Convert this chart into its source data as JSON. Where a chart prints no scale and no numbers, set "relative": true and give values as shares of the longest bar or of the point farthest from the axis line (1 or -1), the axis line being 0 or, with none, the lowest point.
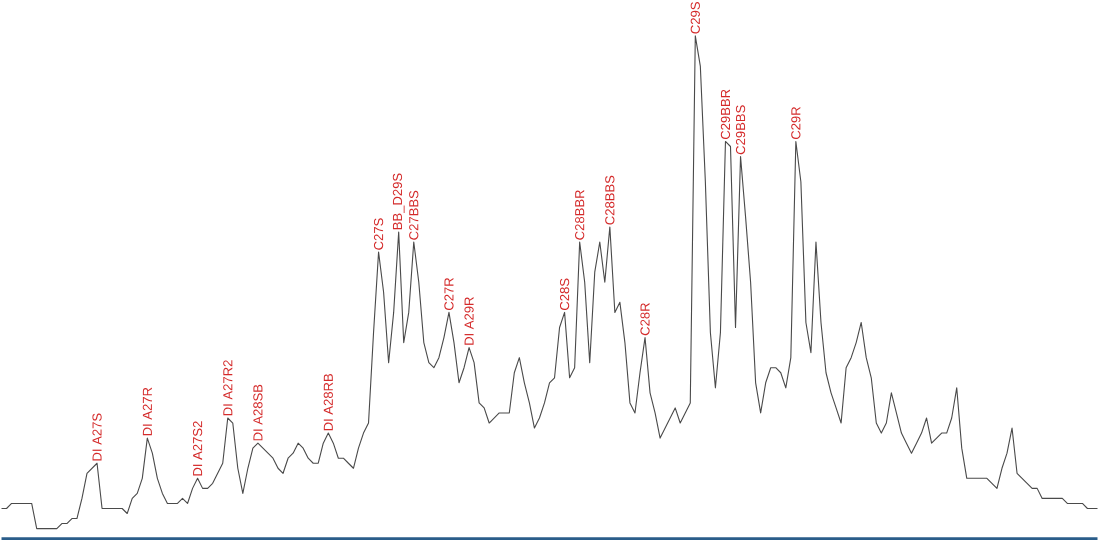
{
  "chart_data": {
    "type": "line",
    "relative": true,
    "color": "#4a4a4a",
    "categories": [
      null,
      null,
      null,
      null,
      null,
      null,
      null,
      null,
      null,
      null,
      null,
      null,
      null,
      null,
      null,
      null,
      null,
      null,
      null,
      null,
      null,
      null,
      null,
      null,
      null,
      null,
      null,
      null,
      null,
      null,
      null,
      null,
      null,
      null,
      null,
      null,
      null,
      null,
      null,
      null,
      null,
      null,
      null,
      null,
      null,
      null,
      null,
      null,
      null,
      null,
      null,
      null,
      null,
      null,
      null,
      null,
      null,
      null,
      null,
      null,
      null,
      null,
      null,
      null,
      null,
      null,
      null,
      null,
      null,
      null,
      null,
      null,
      null,
      null,
      null,
      null,
      null,
      null,
      null,
      null,
      null,
      null,
      null,
      null,
      null,
      null,
      null,
      null,
      null,
      null,
      null,
      null,
      null,
      null,
      null,
      null,
      null,
      null,
      null,
      null,
      null,
      null,
      null,
      null,
      null,
      null,
      null,
      null,
      null,
      null,
      null,
      null,
      null,
      null,
      null,
      null,
      null,
      null,
      null,
      null,
      null,
      null,
      null,
      null,
      null,
      null,
      null,
      null,
      null,
      null,
      null,
      null,
      null,
      null,
      null,
      null,
      null,
      null,
      null,
      null,
      null,
      null,
      null,
      null,
      null,
      null,
      null,
      null,
      null,
      null,
      null,
      null,
      null,
      null,
      null,
      null,
      null,
      null,
      null,
      null,
      null,
      null,
      null,
      null,
      null,
      null,
      null,
      null,
      null,
      null,
      null,
      null,
      null,
      null,
      null,
      null,
      null,
      null,
      null,
      null,
      null,
      null,
      null,
      null,
      null,
      null,
      null,
      null,
      null,
      null,
      null,
      null,
      null,
      null,
      null,
      null,
      null,
      null,
      null,
      null,
      null,
      null,
      null,
      null,
      null,
      null,
      null,
      null,
      null,
      null,
      null,
      null,
      null,
      null,
      null,
      null,
      null,
      null,
      null
    ],
    "values": [
      0.06,
      0.06,
      0.07,
      0.07,
      0.07,
      0.07,
      0.07,
      0.02,
      0.02,
      0.02,
      0.02,
      0.02,
      0.03,
      0.03,
      0.04,
      0.04,
      0.08,
      0.13,
      0.14,
      0.15,
      0.06,
      0.06,
      0.06,
      0.06,
      0.06,
      0.05,
      0.08,
      0.09,
      0.12,
      0.2,
      0.17,
      0.12,
      0.09,
      0.07,
      0.07,
      0.07,
      0.08,
      0.07,
      0.1,
      0.12,
      0.1,
      0.1,
      0.11,
      0.13,
      0.15,
      0.24,
      0.23,
      0.14,
      0.09,
      0.14,
      0.18,
      0.19,
      0.18,
      0.17,
      0.16,
      0.14,
      0.13,
      0.16,
      0.17,
      0.19,
      0.18,
      0.16,
      0.15,
      0.15,
      0.19,
      0.21,
      0.19,
      0.16,
      0.16,
      0.15,
      0.14,
      0.18,
      0.21,
      0.23,
      0.41,
      0.57,
      0.49,
      0.35,
      0.45,
      0.61,
      0.39,
      0.45,
      0.59,
      0.51,
      0.39,
      0.35,
      0.34,
      0.36,
      0.4,
      0.45,
      0.39,
      0.31,
      0.34,
      0.38,
      0.35,
      0.27,
      0.26,
      0.23,
      0.24,
      0.25,
      0.25,
      0.25,
      0.33,
      0.36,
      0.31,
      0.27,
      0.22,
      0.24,
      0.27,
      0.31,
      0.32,
      0.42,
      0.45,
      0.32,
      0.34,
      0.59,
      0.51,
      0.35,
      0.53,
      0.59,
      0.51,
      0.62,
      0.45,
      0.47,
      0.39,
      0.27,
      0.25,
      0.33,
      0.4,
      0.29,
      0.25,
      0.2,
      0.22,
      0.24,
      0.26,
      0.23,
      0.25,
      0.27,
      1.0,
      0.94,
      0.71,
      0.41,
      0.3,
      0.41,
      0.79,
      0.78,
      0.42,
      0.76,
      0.64,
      0.51,
      0.31,
      0.25,
      0.31,
      0.34,
      0.34,
      0.33,
      0.3,
      0.36,
      0.79,
      0.71,
      0.43,
      0.37,
      0.59,
      0.43,
      0.33,
      0.29,
      0.26,
      0.23,
      0.34,
      0.36,
      0.39,
      0.43,
      0.36,
      0.32,
      0.23,
      0.21,
      0.23,
      0.29,
      0.25,
      0.21,
      0.19,
      0.17,
      0.19,
      0.21,
      0.24,
      0.19,
      0.2,
      0.21,
      0.21,
      0.24,
      0.3,
      0.18,
      0.12,
      0.12,
      0.12,
      0.12,
      0.12,
      0.11,
      0.1,
      0.14,
      0.17,
      0.22,
      0.13,
      0.12,
      0.11,
      0.1,
      0.1,
      0.08,
      0.08,
      0.08,
      0.08,
      0.08,
      0.07,
      0.07,
      0.07,
      0.07,
      0.06,
      0.06,
      0.06
    ],
    "annotations": [
      {
        "text": "DI A27S",
        "y": 0.15
      },
      {
        "text": "DI A27R",
        "y": 0.2
      },
      {
        "text": "DI A27S2",
        "y": 0.12
      },
      {
        "text": "DI A27R2",
        "y": 0.24
      },
      {
        "text": "DI A28SB",
        "y": 0.19
      },
      {
        "text": "DI A28RB",
        "y": 0.21
      },
      {
        "text": "C27S",
        "y": 0.57
      },
      {
        "text": "BB_D29S",
        "y": 0.61
      },
      {
        "text": "C27BBS",
        "y": 0.59
      },
      {
        "text": "C27R",
        "y": 0.45
      },
      {
        "text": "DI A29R",
        "y": 0.38
      },
      {
        "text": "C28S",
        "y": 0.45
      },
      {
        "text": "C28BBR",
        "y": 0.59
      },
      {
        "text": "C28BBS",
        "y": 0.62
      },
      {
        "text": "C28R",
        "y": 0.4
      },
      {
        "text": "C29S",
        "y": 1.0
      },
      {
        "text": "C29BBR",
        "y": 0.79
      },
      {
        "text": "C29BBS",
        "y": 0.76
      },
      {
        "text": "C29R",
        "y": 0.79
      }
    ]
  }
}
